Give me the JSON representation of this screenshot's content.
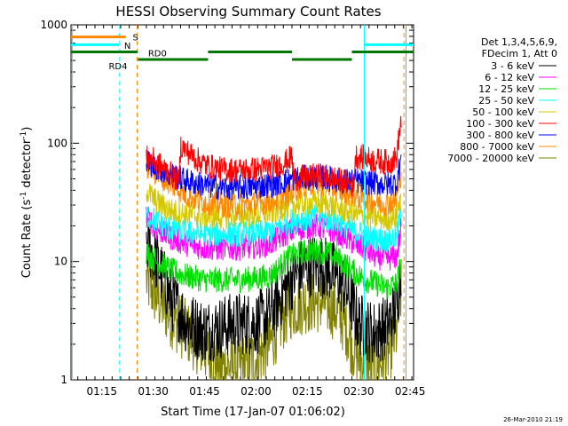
{
  "chart_data": {
    "type": "line",
    "title": "HESSI Observing Summary Count Rates",
    "xlabel": "Start Time (17-Jan-07 01:06:02)",
    "ylabel": "Count Rate (s",
    "ylabel_sup": "-1",
    "ylabel_mid": " detector",
    "ylabel_sup2": "-1",
    "ylabel_end": ")",
    "y_scale": "log",
    "ylim": [
      1,
      1000
    ],
    "xlim_minutes": [
      66,
      166
    ],
    "y_ticks": [
      {
        "v": 1,
        "label": "1"
      },
      {
        "v": 10,
        "label": "10"
      },
      {
        "v": 100,
        "label": "100"
      },
      {
        "v": 1000,
        "label": "1000"
      }
    ],
    "x_ticks": [
      {
        "m": 75,
        "label": "01:15"
      },
      {
        "m": 90,
        "label": "01:30"
      },
      {
        "m": 105,
        "label": "01:45"
      },
      {
        "m": 120,
        "label": "02:00"
      },
      {
        "m": 135,
        "label": "02:15"
      },
      {
        "m": 150,
        "label": "02:30"
      },
      {
        "m": 165,
        "label": "02:45"
      }
    ],
    "legend": {
      "header1": "Det 1,3,4,5,6,9,",
      "header2": "FDecim 1, Att 0",
      "position": "right"
    },
    "series": [
      {
        "name": "3 - 6 keV",
        "color": "#000000",
        "pts": [
          [
            88,
            15
          ],
          [
            91,
            10
          ],
          [
            95,
            5
          ],
          [
            100,
            3
          ],
          [
            105,
            2.6
          ],
          [
            110,
            2.8
          ],
          [
            115,
            3
          ],
          [
            120,
            3
          ],
          [
            124,
            3.5
          ],
          [
            127,
            5
          ],
          [
            130,
            7
          ],
          [
            134,
            9
          ],
          [
            137,
            9.5
          ],
          [
            140,
            9
          ],
          [
            143,
            8
          ],
          [
            146,
            6
          ],
          [
            148,
            4.5
          ],
          [
            150,
            3
          ],
          [
            154,
            2.5
          ],
          [
            158,
            2.8
          ],
          [
            161,
            4
          ],
          [
            162.5,
            10
          ]
        ]
      },
      {
        "name": "6 - 12 keV",
        "color": "#ff00ff",
        "pts": [
          [
            88,
            24
          ],
          [
            91,
            19
          ],
          [
            95,
            16
          ],
          [
            100,
            14
          ],
          [
            105,
            13
          ],
          [
            110,
            13
          ],
          [
            115,
            13
          ],
          [
            120,
            13.5
          ],
          [
            124,
            14
          ],
          [
            127,
            16
          ],
          [
            130,
            18
          ],
          [
            134,
            19.5
          ],
          [
            137,
            20
          ],
          [
            140,
            19
          ],
          [
            143,
            18
          ],
          [
            146,
            16
          ],
          [
            149,
            14
          ],
          [
            152,
            12.5
          ],
          [
            155,
            11
          ],
          [
            158,
            10.5
          ],
          [
            161,
            11
          ],
          [
            162.5,
            20
          ]
        ]
      },
      {
        "name": "12 - 25 keV",
        "color": "#00dd00",
        "pts": [
          [
            88,
            12
          ],
          [
            91,
            10
          ],
          [
            95,
            8.5
          ],
          [
            100,
            7.5
          ],
          [
            105,
            7
          ],
          [
            110,
            7
          ],
          [
            115,
            7
          ],
          [
            120,
            7.2
          ],
          [
            124,
            7.5
          ],
          [
            127,
            9
          ],
          [
            130,
            11
          ],
          [
            134,
            12
          ],
          [
            137,
            12.3
          ],
          [
            140,
            12
          ],
          [
            143,
            11
          ],
          [
            146,
            9.5
          ],
          [
            149,
            8
          ],
          [
            152,
            7
          ],
          [
            155,
            6.5
          ],
          [
            158,
            6
          ],
          [
            161,
            6.5
          ],
          [
            162.5,
            10
          ]
        ]
      },
      {
        "name": "25 - 50 keV",
        "color": "#00ffff",
        "pts": [
          [
            88,
            25
          ],
          [
            91,
            22
          ],
          [
            95,
            19
          ],
          [
            100,
            17.5
          ],
          [
            105,
            17
          ],
          [
            110,
            17
          ],
          [
            115,
            17
          ],
          [
            120,
            17.5
          ],
          [
            124,
            18
          ],
          [
            127,
            20
          ],
          [
            130,
            22
          ],
          [
            134,
            23
          ],
          [
            137,
            23.5
          ],
          [
            140,
            23
          ],
          [
            143,
            22
          ],
          [
            146,
            20
          ],
          [
            149,
            18
          ],
          [
            152,
            16.5
          ],
          [
            155,
            15.5
          ],
          [
            158,
            15
          ],
          [
            161,
            16
          ],
          [
            162.5,
            30
          ]
        ]
      },
      {
        "name": "50 - 100 keV",
        "color": "#d4c800",
        "pts": [
          [
            88,
            40
          ],
          [
            91,
            32
          ],
          [
            95,
            27
          ],
          [
            100,
            25
          ],
          [
            105,
            24
          ],
          [
            110,
            24
          ],
          [
            115,
            24.5
          ],
          [
            120,
            25
          ],
          [
            124,
            26
          ],
          [
            127,
            28
          ],
          [
            130,
            30
          ],
          [
            134,
            31
          ],
          [
            137,
            31.5
          ],
          [
            140,
            31
          ],
          [
            143,
            29
          ],
          [
            146,
            27
          ],
          [
            149,
            25
          ],
          [
            152,
            24
          ],
          [
            155,
            23.5
          ],
          [
            158,
            23
          ],
          [
            161,
            24
          ],
          [
            162.5,
            40
          ]
        ]
      },
      {
        "name": "100 - 300 keV",
        "color": "#ff0000",
        "pts": [
          [
            88,
            75
          ],
          [
            90,
            72
          ],
          [
            92,
            65
          ],
          [
            94,
            58
          ],
          [
            96,
            52
          ],
          [
            97.5,
            48
          ],
          [
            98,
            95
          ],
          [
            100,
            85
          ],
          [
            103,
            72
          ],
          [
            106,
            64
          ],
          [
            110,
            60
          ],
          [
            115,
            59
          ],
          [
            120,
            60
          ],
          [
            125,
            63
          ],
          [
            129,
            70
          ],
          [
            130.5,
            78
          ],
          [
            131,
            50
          ],
          [
            135,
            52
          ],
          [
            138,
            53
          ],
          [
            141,
            52
          ],
          [
            144,
            49
          ],
          [
            147,
            46
          ],
          [
            148.5,
            43
          ],
          [
            149,
            78
          ],
          [
            151,
            76
          ],
          [
            154,
            72
          ],
          [
            157,
            70
          ],
          [
            159,
            69
          ],
          [
            161,
            75
          ],
          [
            162.5,
            170
          ]
        ]
      },
      {
        "name": "300 - 800 keV",
        "color": "#0000ff",
        "pts": [
          [
            88,
            70
          ],
          [
            91,
            62
          ],
          [
            94,
            56
          ],
          [
            97,
            52
          ],
          [
            100,
            48
          ],
          [
            105,
            44
          ],
          [
            110,
            42
          ],
          [
            115,
            42
          ],
          [
            120,
            43
          ],
          [
            125,
            45
          ],
          [
            129,
            48
          ],
          [
            131,
            50
          ],
          [
            134,
            51
          ],
          [
            137,
            52
          ],
          [
            140,
            51
          ],
          [
            143,
            49
          ],
          [
            146,
            48
          ],
          [
            149,
            48
          ],
          [
            152,
            47
          ],
          [
            155,
            46
          ],
          [
            158,
            45
          ],
          [
            161,
            46
          ],
          [
            162.5,
            80
          ]
        ]
      },
      {
        "name": "800 - 7000 keV",
        "color": "#ff8800",
        "pts": [
          [
            88,
            65
          ],
          [
            91,
            55
          ],
          [
            94,
            48
          ],
          [
            97,
            42
          ],
          [
            100,
            36
          ],
          [
            105,
            32
          ],
          [
            110,
            30
          ],
          [
            115,
            30
          ],
          [
            120,
            31
          ],
          [
            125,
            33
          ],
          [
            129,
            36
          ],
          [
            131,
            40
          ],
          [
            134,
            44
          ],
          [
            137,
            46
          ],
          [
            140,
            45
          ],
          [
            143,
            42
          ],
          [
            146,
            39
          ],
          [
            149,
            36
          ],
          [
            152,
            34
          ],
          [
            155,
            32
          ],
          [
            158,
            31
          ],
          [
            161,
            33
          ],
          [
            162.5,
            60
          ]
        ]
      },
      {
        "name": "7000 - 20000 keV",
        "color": "#808000",
        "pts": [
          [
            88,
            7
          ],
          [
            91,
            5
          ],
          [
            95,
            3.5
          ],
          [
            100,
            2.5
          ],
          [
            105,
            1.8
          ],
          [
            110,
            1.3
          ],
          [
            115,
            1.3
          ],
          [
            120,
            1.5
          ],
          [
            124,
            2
          ],
          [
            127,
            3
          ],
          [
            130,
            4
          ],
          [
            134,
            4.5
          ],
          [
            137,
            4.6
          ],
          [
            140,
            4.5
          ],
          [
            143,
            4
          ],
          [
            146,
            3
          ],
          [
            148,
            2
          ],
          [
            150,
            1.5
          ],
          [
            154,
            1.3
          ],
          [
            158,
            1.5
          ],
          [
            161,
            2.5
          ],
          [
            162.5,
            6
          ]
        ]
      }
    ],
    "noise_frac": 0.22,
    "state_bars": [
      {
        "label": "S",
        "color": "#ff8800",
        "y": 790,
        "segments": [
          [
            66,
            82
          ]
        ],
        "label_m": 84,
        "label_y": 790
      },
      {
        "label": "N",
        "color": "#00ffff",
        "y": 680,
        "segments": [
          [
            66,
            80
          ],
          [
            151.5,
            166
          ]
        ],
        "label_m": 81.5,
        "label_y": 670
      },
      {
        "label": "RD0",
        "color": "#007700",
        "y": 590,
        "segments": [
          [
            66,
            85.5
          ],
          [
            106,
            130.5
          ],
          [
            148,
            166
          ]
        ],
        "label_m": 88.5,
        "label_y": 580
      },
      {
        "label": "RD4",
        "color": "#007700",
        "y": 510,
        "segments": [
          [
            85.5,
            106
          ],
          [
            130.5,
            148
          ]
        ],
        "label_m": 77,
        "label_y": 450
      }
    ],
    "vlines": [
      {
        "m": 66.4,
        "color": "#00ffff",
        "dash": false
      },
      {
        "m": 80.2,
        "color": "#00ffff",
        "dash": true
      },
      {
        "m": 85.3,
        "color": "#ff8800",
        "dash": true
      },
      {
        "m": 151.6,
        "color": "#00ffff",
        "dash": false
      },
      {
        "m": 163.2,
        "color": "#ff8800",
        "dash": true
      },
      {
        "m": 163.8,
        "color": "#ff8800",
        "dash": false
      }
    ],
    "grid": false,
    "footer_date": "26-Mar-2010 21:19"
  }
}
